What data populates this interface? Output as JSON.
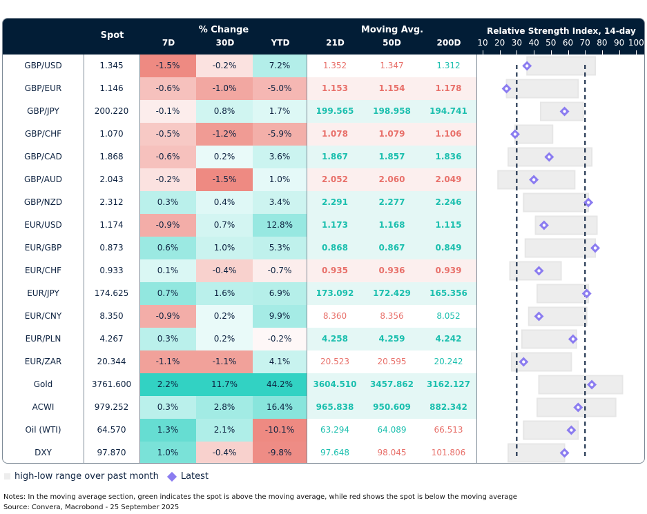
{
  "header": {
    "spot_label": "Spot",
    "pct_change_label": "% Change",
    "pct_cols": [
      "7D",
      "30D",
      "YTD"
    ],
    "ma_label": "Moving Avg.",
    "ma_cols": [
      "21D",
      "50D",
      "200D"
    ],
    "rsi_label": "Relative Strength Index, 14-day",
    "rsi_ticks": [
      "10",
      "20",
      "30",
      "40",
      "50",
      "60",
      "70",
      "80",
      "90",
      "100"
    ]
  },
  "colors": {
    "header_bg": "#021d36",
    "ma_green": "#1bbfae",
    "ma_red": "#e8706a",
    "ma_green_bg": "#e4f7f5",
    "ma_red_bg": "#fcefee",
    "range_bar": "#ededed",
    "latest_marker": "#8b7cf0",
    "rsi_threshold_line": "#0d2240"
  },
  "rows": [
    {
      "name": "GBP/USD",
      "spot": "1.345",
      "d7": "-1.5%",
      "d30": "-0.2%",
      "ytd": "7.2%",
      "ma21": "1.352",
      "ma50": "1.347",
      "ma200": "1.312",
      "ma_colors": [
        "red",
        "red",
        "green"
      ],
      "ma_bg": "none",
      "rsi_low": 36,
      "rsi_high": 76,
      "rsi_latest": 36
    },
    {
      "name": "GBP/EUR",
      "spot": "1.146",
      "d7": "-0.6%",
      "d30": "-1.0%",
      "ytd": "-5.0%",
      "ma21": "1.153",
      "ma50": "1.154",
      "ma200": "1.178",
      "ma_colors": [
        "red",
        "red",
        "red"
      ],
      "ma_bg": "red",
      "rsi_low": 24,
      "rsi_high": 66,
      "rsi_latest": 24
    },
    {
      "name": "GBP/JPY",
      "spot": "200.220",
      "d7": "-0.1%",
      "d30": "0.8%",
      "ytd": "1.7%",
      "ma21": "199.565",
      "ma50": "198.958",
      "ma200": "194.741",
      "ma_colors": [
        "green",
        "green",
        "green"
      ],
      "ma_bg": "green",
      "rsi_low": 44,
      "rsi_high": 69,
      "rsi_latest": 58
    },
    {
      "name": "GBP/CHF",
      "spot": "1.070",
      "d7": "-0.5%",
      "d30": "-1.2%",
      "ytd": "-5.9%",
      "ma21": "1.078",
      "ma50": "1.079",
      "ma200": "1.106",
      "ma_colors": [
        "red",
        "red",
        "red"
      ],
      "ma_bg": "red",
      "rsi_low": 29,
      "rsi_high": 51,
      "rsi_latest": 29
    },
    {
      "name": "GBP/CAD",
      "spot": "1.868",
      "d7": "-0.6%",
      "d30": "0.2%",
      "ytd": "3.6%",
      "ma21": "1.867",
      "ma50": "1.857",
      "ma200": "1.836",
      "ma_colors": [
        "green",
        "green",
        "green"
      ],
      "ma_bg": "green",
      "rsi_low": 25,
      "rsi_high": 74,
      "rsi_latest": 49
    },
    {
      "name": "GBP/AUD",
      "spot": "2.043",
      "d7": "-0.2%",
      "d30": "-1.5%",
      "ytd": "1.0%",
      "ma21": "2.052",
      "ma50": "2.060",
      "ma200": "2.049",
      "ma_colors": [
        "red",
        "red",
        "red"
      ],
      "ma_bg": "red",
      "rsi_low": 19,
      "rsi_high": 64,
      "rsi_latest": 40
    },
    {
      "name": "GBP/NZD",
      "spot": "2.312",
      "d7": "0.3%",
      "d30": "0.4%",
      "ytd": "3.4%",
      "ma21": "2.291",
      "ma50": "2.277",
      "ma200": "2.246",
      "ma_colors": [
        "green",
        "green",
        "green"
      ],
      "ma_bg": "green",
      "rsi_low": 34,
      "rsi_high": 72,
      "rsi_latest": 72
    },
    {
      "name": "EUR/USD",
      "spot": "1.174",
      "d7": "-0.9%",
      "d30": "0.7%",
      "ytd": "12.8%",
      "ma21": "1.173",
      "ma50": "1.168",
      "ma200": "1.115",
      "ma_colors": [
        "green",
        "green",
        "green"
      ],
      "ma_bg": "green",
      "rsi_low": 41,
      "rsi_high": 77,
      "rsi_latest": 46
    },
    {
      "name": "EUR/GBP",
      "spot": "0.873",
      "d7": "0.6%",
      "d30": "1.0%",
      "ytd": "5.3%",
      "ma21": "0.868",
      "ma50": "0.867",
      "ma200": "0.849",
      "ma_colors": [
        "green",
        "green",
        "green"
      ],
      "ma_bg": "green",
      "rsi_low": 35,
      "rsi_high": 76,
      "rsi_latest": 76
    },
    {
      "name": "EUR/CHF",
      "spot": "0.933",
      "d7": "0.1%",
      "d30": "-0.4%",
      "ytd": "-0.7%",
      "ma21": "0.935",
      "ma50": "0.936",
      "ma200": "0.939",
      "ma_colors": [
        "red",
        "red",
        "red"
      ],
      "ma_bg": "red",
      "rsi_low": 26,
      "rsi_high": 56,
      "rsi_latest": 43
    },
    {
      "name": "EUR/JPY",
      "spot": "174.625",
      "d7": "0.7%",
      "d30": "1.6%",
      "ytd": "6.9%",
      "ma21": "173.092",
      "ma50": "172.429",
      "ma200": "165.356",
      "ma_colors": [
        "green",
        "green",
        "green"
      ],
      "ma_bg": "green",
      "rsi_low": 42,
      "rsi_high": 72,
      "rsi_latest": 71
    },
    {
      "name": "EUR/CNY",
      "spot": "8.350",
      "d7": "-0.9%",
      "d30": "0.2%",
      "ytd": "9.9%",
      "ma21": "8.360",
      "ma50": "8.356",
      "ma200": "8.052",
      "ma_colors": [
        "red",
        "red",
        "green"
      ],
      "ma_bg": "none",
      "rsi_low": 37,
      "rsi_high": 71,
      "rsi_latest": 43
    },
    {
      "name": "EUR/PLN",
      "spot": "4.267",
      "d7": "0.3%",
      "d30": "0.2%",
      "ytd": "-0.2%",
      "ma21": "4.258",
      "ma50": "4.259",
      "ma200": "4.242",
      "ma_colors": [
        "green",
        "green",
        "green"
      ],
      "ma_bg": "green",
      "rsi_low": 33,
      "rsi_high": 65,
      "rsi_latest": 63
    },
    {
      "name": "EUR/ZAR",
      "spot": "20.344",
      "d7": "-1.1%",
      "d30": "-1.1%",
      "ytd": "4.1%",
      "ma21": "20.523",
      "ma50": "20.595",
      "ma200": "20.242",
      "ma_colors": [
        "red",
        "red",
        "green"
      ],
      "ma_bg": "none",
      "rsi_low": 27,
      "rsi_high": 62,
      "rsi_latest": 34
    },
    {
      "name": "Gold",
      "spot": "3761.600",
      "d7": "2.2%",
      "d30": "11.7%",
      "ytd": "44.2%",
      "ma21": "3604.510",
      "ma50": "3457.862",
      "ma200": "3162.127",
      "ma_colors": [
        "green",
        "green",
        "green"
      ],
      "ma_bg": "green",
      "rsi_low": 43,
      "rsi_high": 92,
      "rsi_latest": 74
    },
    {
      "name": "ACWI",
      "spot": "979.252",
      "d7": "0.3%",
      "d30": "2.8%",
      "ytd": "16.4%",
      "ma21": "965.838",
      "ma50": "950.609",
      "ma200": "882.342",
      "ma_colors": [
        "green",
        "green",
        "green"
      ],
      "ma_bg": "green",
      "rsi_low": 42,
      "rsi_high": 88,
      "rsi_latest": 66
    },
    {
      "name": "Oil (WTI)",
      "spot": "64.570",
      "d7": "1.3%",
      "d30": "2.1%",
      "ytd": "-10.1%",
      "ma21": "63.294",
      "ma50": "64.089",
      "ma200": "66.513",
      "ma_colors": [
        "green",
        "green",
        "red"
      ],
      "ma_bg": "none",
      "rsi_low": 34,
      "rsi_high": 66,
      "rsi_latest": 62
    },
    {
      "name": "DXY",
      "spot": "97.870",
      "d7": "1.0%",
      "d30": "-0.4%",
      "ytd": "-9.8%",
      "ma21": "97.648",
      "ma50": "98.045",
      "ma200": "101.806",
      "ma_colors": [
        "green",
        "red",
        "red"
      ],
      "ma_bg": "none",
      "rsi_low": 25,
      "rsi_high": 58,
      "rsi_latest": 58
    }
  ],
  "chart_data": {
    "type": "table",
    "title": "Relative Strength Index, 14-day",
    "xlim": [
      10,
      100
    ],
    "x_ticks": [
      10,
      20,
      30,
      40,
      50,
      60,
      70,
      80,
      90,
      100
    ],
    "threshold_lines": [
      30,
      70
    ],
    "legend": [
      "high-low range over past month",
      "Latest"
    ],
    "legend_position": "bottom-left"
  },
  "legend": {
    "range_label": "high-low range over past month",
    "latest_label": "Latest"
  },
  "notes": {
    "note": "Notes: In the moving average section, green indicates the spot is above the moving average, while red shows the spot is below the moving average",
    "source": "Source: Convera, Macrobond - 25 September 2025"
  }
}
